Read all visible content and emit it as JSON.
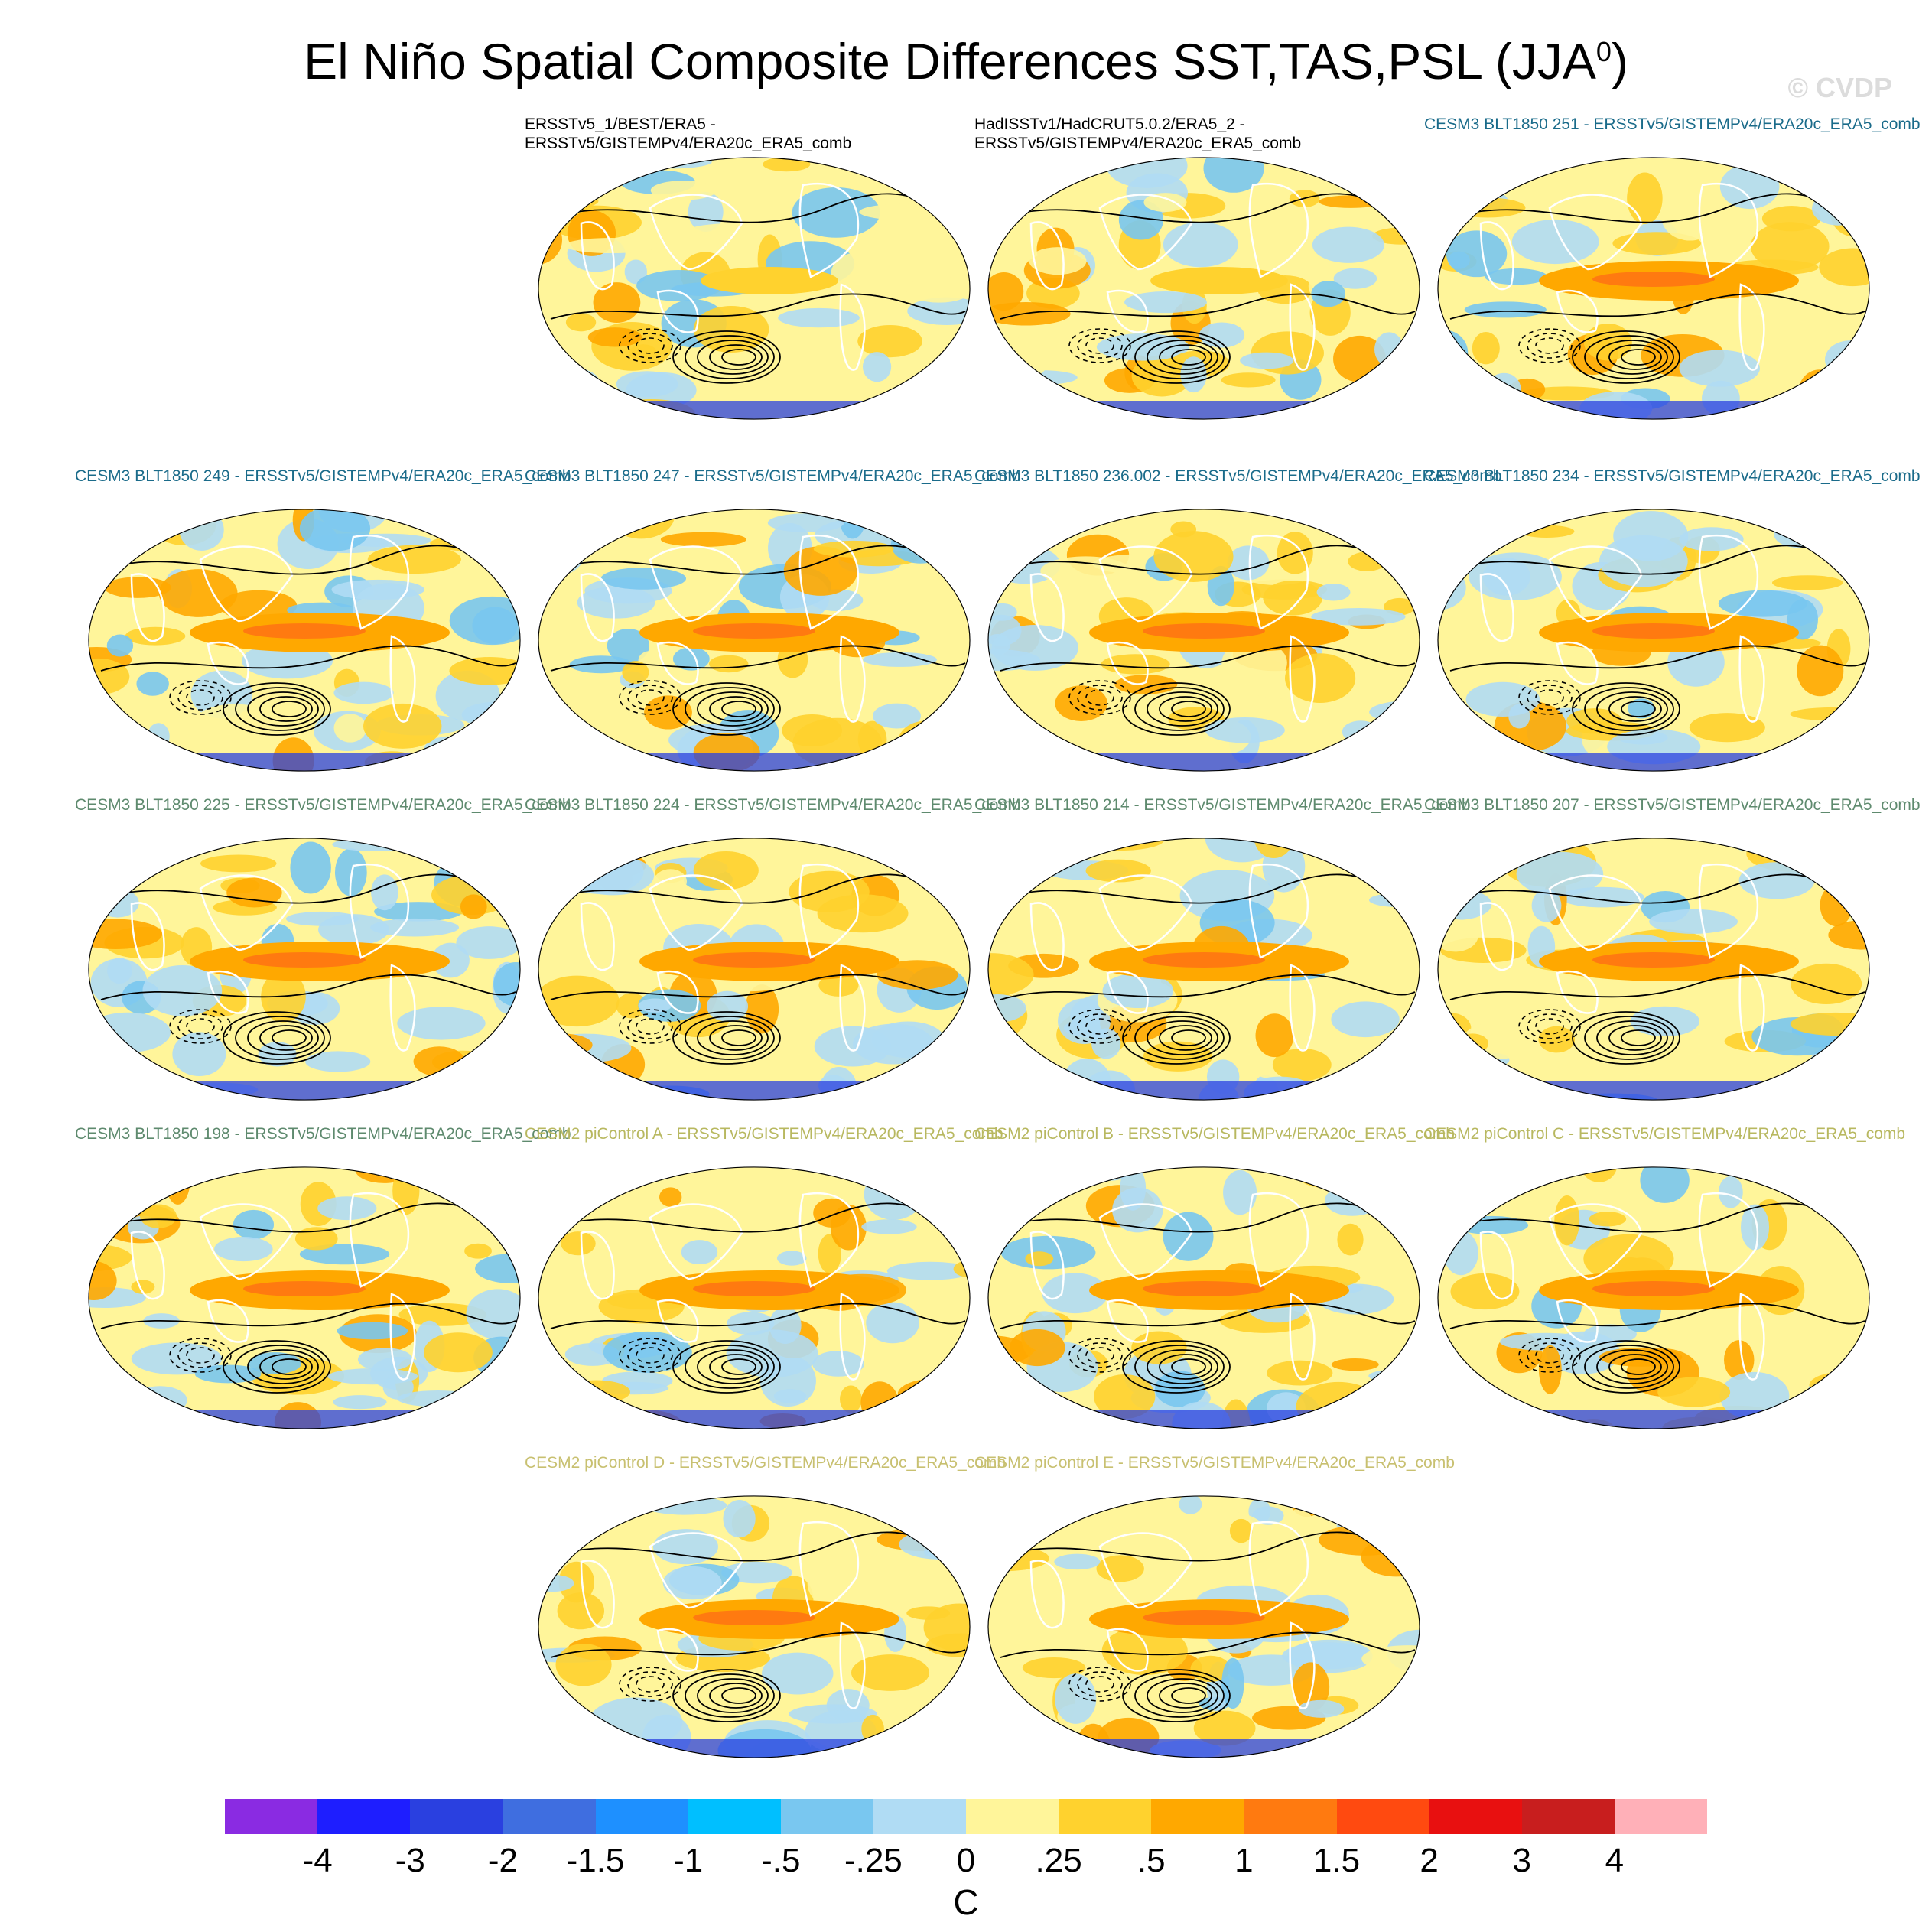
{
  "title": "El Niño Spatial Composite Differences SST,TAS,PSL (JJA",
  "title_sup": "0",
  "title_close": ")",
  "watermark": "© CVDP",
  "panels": [
    {
      "label": "ERSSTv5_1/BEST/ERA5 -\nERSSTv5/GISTEMPv4/ERA20c_ERA5_comb",
      "color": "#000000"
    },
    {
      "label": "HadISSTv1/HadCRUT5.0.2/ERA5_2 -\nERSSTv5/GISTEMPv4/ERA20c_ERA5_comb",
      "color": "#000000"
    },
    {
      "label": "CESM3 BLT1850 251 - ERSSTv5/GISTEMPv4/ERA20c_ERA5_comb",
      "color": "#1a6b8a"
    },
    {
      "label": "CESM3 BLT1850 249 - ERSSTv5/GISTEMPv4/ERA20c_ERA5_comb",
      "color": "#1a6b8a"
    },
    {
      "label": "CESM3 BLT1850 247 - ERSSTv5/GISTEMPv4/ERA20c_ERA5_comb",
      "color": "#1a6b8a"
    },
    {
      "label": "CESM3 BLT1850 236.002 - ERSSTv5/GISTEMPv4/ERA20c_ERA5_comb",
      "color": "#1a6b8a"
    },
    {
      "label": "CESM3 BLT1850 234 - ERSSTv5/GISTEMPv4/ERA20c_ERA5_comb",
      "color": "#1a6b8a"
    },
    {
      "label": "CESM3 BLT1850 225 - ERSSTv5/GISTEMPv4/ERA20c_ERA5_comb",
      "color": "#5e8a6e"
    },
    {
      "label": "CESM3 BLT1850 224 - ERSSTv5/GISTEMPv4/ERA20c_ERA5_comb",
      "color": "#5e8a6e"
    },
    {
      "label": "CESM3 BLT1850 214 - ERSSTv5/GISTEMPv4/ERA20c_ERA5_comb",
      "color": "#5e8a6e"
    },
    {
      "label": "CESM3 BLT1850 207 - ERSSTv5/GISTEMPv4/ERA20c_ERA5_comb",
      "color": "#5e8a6e"
    },
    {
      "label": "CESM3 BLT1850 198 - ERSSTv5/GISTEMPv4/ERA20c_ERA5_comb",
      "color": "#5e8a6e"
    },
    {
      "label": "CESM2 piControl A - ERSSTv5/GISTEMPv4/ERA20c_ERA5_comb",
      "color": "#b8b860"
    },
    {
      "label": "CESM2 piControl B - ERSSTv5/GISTEMPv4/ERA20c_ERA5_comb",
      "color": "#b8b860"
    },
    {
      "label": "CESM2 piControl C - ERSSTv5/GISTEMPv4/ERA20c_ERA5_comb",
      "color": "#b8b860"
    },
    {
      "label": "CESM2 piControl D - ERSSTv5/GISTEMPv4/ERA20c_ERA5_comb",
      "color": "#c8c070"
    },
    {
      "label": "CESM2 piControl E - ERSSTv5/GISTEMPv4/ERA20c_ERA5_comb",
      "color": "#c8c070"
    }
  ],
  "colorbar": {
    "colors": [
      "#8a2be2",
      "#1e1eff",
      "#2a40e0",
      "#3f6ee0",
      "#1e90ff",
      "#00bfff",
      "#79c7f0",
      "#b0dcf4",
      "#fff59a",
      "#ffd22e",
      "#ffa800",
      "#ff7a10",
      "#ff4a10",
      "#e81010",
      "#c81e1e",
      "#ffb0b8"
    ],
    "labels": [
      "-4",
      "-3",
      "-2",
      "-1.5",
      "-1",
      "-.5",
      "-.25",
      "0",
      ".25",
      ".5",
      "1",
      "1.5",
      "2",
      "3",
      "4"
    ],
    "units": "C"
  }
}
